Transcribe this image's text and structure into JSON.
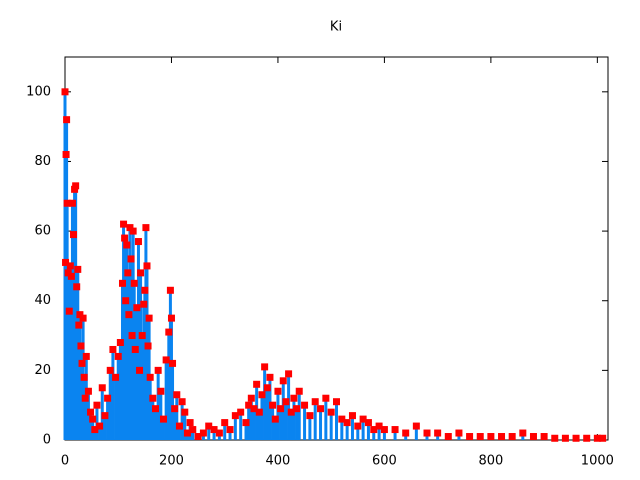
{
  "chart_data": {
    "type": "stem",
    "title": "Ki",
    "x": [
      0,
      1,
      2,
      3,
      4,
      6,
      8,
      10,
      12,
      14,
      16,
      18,
      20,
      22,
      24,
      26,
      28,
      30,
      32,
      34,
      36,
      38,
      40,
      44,
      48,
      52,
      56,
      60,
      65,
      70,
      75,
      80,
      85,
      90,
      95,
      100,
      104,
      108,
      110,
      112,
      114,
      116,
      118,
      120,
      122,
      124,
      126,
      128,
      130,
      132,
      135,
      138,
      140,
      142,
      145,
      148,
      150,
      152,
      154,
      156,
      158,
      160,
      165,
      170,
      175,
      180,
      185,
      190,
      195,
      198,
      200,
      202,
      206,
      210,
      215,
      220,
      225,
      230,
      235,
      240,
      250,
      260,
      270,
      280,
      290,
      300,
      310,
      320,
      330,
      340,
      345,
      350,
      355,
      360,
      365,
      370,
      375,
      380,
      385,
      390,
      395,
      400,
      405,
      410,
      415,
      420,
      425,
      430,
      435,
      440,
      450,
      460,
      470,
      480,
      490,
      500,
      510,
      520,
      530,
      540,
      550,
      560,
      570,
      580,
      590,
      600,
      620,
      640,
      660,
      680,
      700,
      720,
      740,
      760,
      780,
      800,
      820,
      840,
      860,
      880,
      900,
      920,
      940,
      960,
      980,
      1000,
      1010
    ],
    "values": [
      100,
      51,
      82,
      92,
      68,
      48,
      37,
      50,
      47,
      68,
      59,
      72,
      73,
      44,
      49,
      33,
      36,
      27,
      22,
      35,
      18,
      12,
      24,
      14,
      8,
      6,
      3,
      10,
      4,
      15,
      7,
      12,
      20,
      26,
      18,
      24,
      28,
      45,
      62,
      58,
      40,
      56,
      48,
      36,
      61,
      52,
      30,
      60,
      45,
      26,
      38,
      57,
      20,
      48,
      30,
      39,
      43,
      61,
      50,
      27,
      35,
      18,
      12,
      9,
      20,
      14,
      6,
      23,
      31,
      43,
      35,
      22,
      9,
      13,
      4,
      11,
      8,
      2,
      5,
      3,
      1,
      2,
      4,
      3,
      2,
      5,
      3,
      7,
      8,
      5,
      10,
      12,
      9,
      16,
      8,
      13,
      21,
      15,
      18,
      10,
      6,
      14,
      9,
      17,
      11,
      19,
      8,
      12,
      9,
      14,
      10,
      7,
      11,
      9,
      12,
      8,
      11,
      6,
      5,
      7,
      4,
      6,
      5,
      3,
      4,
      3,
      3,
      2,
      4,
      2,
      2,
      1,
      2,
      1,
      1,
      1,
      1,
      1,
      2,
      1,
      1,
      0.5,
      0.5,
      0.5,
      0.5,
      0.5,
      0.5
    ],
    "color": "#0a84f0",
    "point_color": "#ff0000",
    "xlim": [
      0,
      1020
    ],
    "ylim": [
      0,
      110
    ],
    "xticks": [
      0,
      200,
      400,
      600,
      800,
      1000
    ],
    "yticks": [
      0,
      20,
      40,
      60,
      80,
      100
    ]
  }
}
